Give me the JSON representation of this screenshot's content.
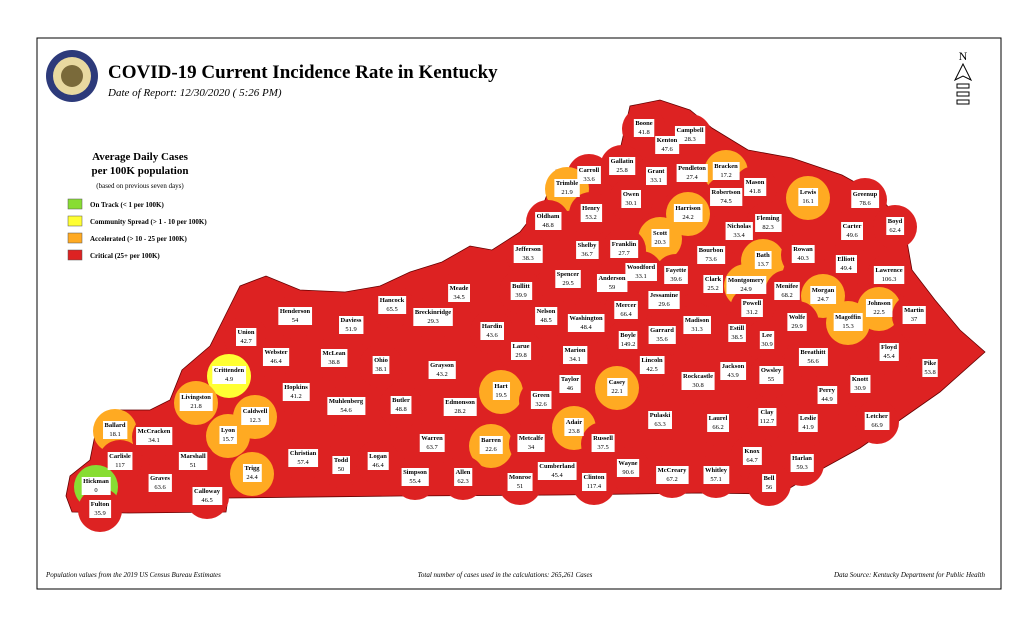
{
  "header": {
    "title": "COVID-19 Current Incidence Rate in Kentucky",
    "subtitle": "Date of Report: 12/30/2020 ( 5:26 PM)",
    "compass": "N"
  },
  "legend": {
    "title": [
      "Average Daily Cases",
      "per 100K population"
    ],
    "subtitle": "(based on previous seven days)",
    "items": [
      {
        "label": "On Track (< 1 per 100K)",
        "color": "#8d3"
      },
      {
        "label": "Community Spread (> 1 - 10 per 100K)",
        "color": "#ff3"
      },
      {
        "label": "Accelerated (> 10 - 25 per 100K)",
        "color": "#fa2"
      },
      {
        "label": "Critical (25+ per 100K)",
        "color": "#d22"
      }
    ]
  },
  "counties": [
    {
      "name": "Boone",
      "value": 41.8,
      "color": "#d22"
    },
    {
      "name": "Campbell",
      "value": 28.3,
      "color": "#d22"
    },
    {
      "name": "Kenton",
      "value": 47.6,
      "color": "#d22"
    },
    {
      "name": "Gallatin",
      "value": 25.8,
      "color": "#d22"
    },
    {
      "name": "Carroll",
      "value": 33.6,
      "color": "#d22"
    },
    {
      "name": "Trimble",
      "value": 21.9,
      "color": "#fa2"
    },
    {
      "name": "Grant",
      "value": 33.1,
      "color": "#d22"
    },
    {
      "name": "Pendleton",
      "value": 27.4,
      "color": "#d22"
    },
    {
      "name": "Bracken",
      "value": 17.2,
      "color": "#fa2"
    },
    {
      "name": "Robertson",
      "value": 74.5,
      "color": "#d22"
    },
    {
      "name": "Mason",
      "value": 41.8,
      "color": "#d22"
    },
    {
      "name": "Lewis",
      "value": 16.1,
      "color": "#fa2"
    },
    {
      "name": "Greenup",
      "value": 78.6,
      "color": "#d22"
    },
    {
      "name": "Boyd",
      "value": 62.4,
      "color": "#d22"
    },
    {
      "name": "Owen",
      "value": 30.1,
      "color": "#d22"
    },
    {
      "name": "Henry",
      "value": 53.2,
      "color": "#d22"
    },
    {
      "name": "Oldham",
      "value": 48.8,
      "color": "#d22"
    },
    {
      "name": "Harrison",
      "value": 24.2,
      "color": "#fa2"
    },
    {
      "name": "Scott",
      "value": 20.3,
      "color": "#fa2"
    },
    {
      "name": "Nicholas",
      "value": 33.4,
      "color": "#d22"
    },
    {
      "name": "Fleming",
      "value": 82.3,
      "color": "#d22"
    },
    {
      "name": "Carter",
      "value": 49.6,
      "color": "#d22"
    },
    {
      "name": "Franklin",
      "value": 27.7,
      "color": "#d22"
    },
    {
      "name": "Shelby",
      "value": 36.7,
      "color": "#d22"
    },
    {
      "name": "Jefferson",
      "value": 38.3,
      "color": "#d22"
    },
    {
      "name": "Bourbon",
      "value": 73.6,
      "color": "#d22"
    },
    {
      "name": "Bath",
      "value": 13.7,
      "color": "#fa2"
    },
    {
      "name": "Rowan",
      "value": 40.3,
      "color": "#d22"
    },
    {
      "name": "Elliott",
      "value": 49.4,
      "color": "#d22"
    },
    {
      "name": "Lawrence",
      "value": 106.3,
      "color": "#d22"
    },
    {
      "name": "Woodford",
      "value": 33.1,
      "color": "#d22"
    },
    {
      "name": "Fayette",
      "value": 39.6,
      "color": "#d22"
    },
    {
      "name": "Spencer",
      "value": 29.5,
      "color": "#d22"
    },
    {
      "name": "Anderson",
      "value": 59,
      "color": "#d22"
    },
    {
      "name": "Clark",
      "value": 25.2,
      "color": "#d22"
    },
    {
      "name": "Montgomery",
      "value": 24.9,
      "color": "#fa2"
    },
    {
      "name": "Menifee",
      "value": 68.2,
      "color": "#d22"
    },
    {
      "name": "Morgan",
      "value": 24.7,
      "color": "#fa2"
    },
    {
      "name": "Johnson",
      "value": 22.5,
      "color": "#fa2"
    },
    {
      "name": "Bullitt",
      "value": 39.9,
      "color": "#d22"
    },
    {
      "name": "Jessamine",
      "value": 29.6,
      "color": "#d22"
    },
    {
      "name": "Mercer",
      "value": 66.4,
      "color": "#d22"
    },
    {
      "name": "Powell",
      "value": 31.2,
      "color": "#d22"
    },
    {
      "name": "Magoffin",
      "value": 15.3,
      "color": "#fa2"
    },
    {
      "name": "Martin",
      "value": 37,
      "color": "#d22"
    },
    {
      "name": "Meade",
      "value": 34.5,
      "color": "#d22"
    },
    {
      "name": "Hancock",
      "value": 65.5,
      "color": "#d22"
    },
    {
      "name": "Breckinridge",
      "value": 29.3,
      "color": "#d22"
    },
    {
      "name": "Henderson",
      "value": 54,
      "color": "#d22"
    },
    {
      "name": "Daviess",
      "value": 51.9,
      "color": "#d22"
    },
    {
      "name": "Nelson",
      "value": 48.5,
      "color": "#d22"
    },
    {
      "name": "Washington",
      "value": 48.4,
      "color": "#d22"
    },
    {
      "name": "Madison",
      "value": 31.3,
      "color": "#d22"
    },
    {
      "name": "Estill",
      "value": 38.5,
      "color": "#d22"
    },
    {
      "name": "Wolfe",
      "value": 29.9,
      "color": "#d22"
    },
    {
      "name": "Lee",
      "value": 30.9,
      "color": "#d22"
    },
    {
      "name": "Hardin",
      "value": 43.6,
      "color": "#d22"
    },
    {
      "name": "Union",
      "value": 42.7,
      "color": "#d22"
    },
    {
      "name": "Boyle",
      "value": 149.2,
      "color": "#d22"
    },
    {
      "name": "Garrard",
      "value": 35.6,
      "color": "#d22"
    },
    {
      "name": "Larue",
      "value": 29.8,
      "color": "#d22"
    },
    {
      "name": "Marion",
      "value": 34.1,
      "color": "#d22"
    },
    {
      "name": "Breathitt",
      "value": 56.6,
      "color": "#d22"
    },
    {
      "name": "Floyd",
      "value": 45.4,
      "color": "#d22"
    },
    {
      "name": "Webster",
      "value": 46.4,
      "color": "#d22"
    },
    {
      "name": "McLean",
      "value": 38.8,
      "color": "#d22"
    },
    {
      "name": "Ohio",
      "value": 38.1,
      "color": "#d22"
    },
    {
      "name": "Grayson",
      "value": 43.2,
      "color": "#d22"
    },
    {
      "name": "Lincoln",
      "value": 42.5,
      "color": "#d22"
    },
    {
      "name": "Jackson",
      "value": 43.9,
      "color": "#d22"
    },
    {
      "name": "Owsley",
      "value": 55,
      "color": "#d22"
    },
    {
      "name": "Pike",
      "value": 53.8,
      "color": "#d22"
    },
    {
      "name": "Knott",
      "value": 30.9,
      "color": "#d22"
    },
    {
      "name": "Crittenden",
      "value": 4.9,
      "color": "#ff3"
    },
    {
      "name": "Rockcastle",
      "value": 30.8,
      "color": "#d22"
    },
    {
      "name": "Taylor",
      "value": 46,
      "color": "#d22"
    },
    {
      "name": "Casey",
      "value": 22.1,
      "color": "#fa2"
    },
    {
      "name": "Hart",
      "value": 19.5,
      "color": "#fa2"
    },
    {
      "name": "Hopkins",
      "value": 41.2,
      "color": "#d22"
    },
    {
      "name": "Perry",
      "value": 44.9,
      "color": "#d22"
    },
    {
      "name": "Muhlenberg",
      "value": 54.6,
      "color": "#d22"
    },
    {
      "name": "Butler",
      "value": 48.8,
      "color": "#d22"
    },
    {
      "name": "Edmonson",
      "value": 28.2,
      "color": "#d22"
    },
    {
      "name": "Green",
      "value": 32.6,
      "color": "#d22"
    },
    {
      "name": "Livingston",
      "value": 21.8,
      "color": "#fa2"
    },
    {
      "name": "Caldwell",
      "value": 12.3,
      "color": "#fa2"
    },
    {
      "name": "Ballard",
      "value": 18.1,
      "color": "#fa2"
    },
    {
      "name": "McCracken",
      "value": 34.1,
      "color": "#d22"
    },
    {
      "name": "Lyon",
      "value": 15.7,
      "color": "#fa2"
    },
    {
      "name": "Pulaski",
      "value": 63.3,
      "color": "#d22"
    },
    {
      "name": "Laurel",
      "value": 66.2,
      "color": "#d22"
    },
    {
      "name": "Clay",
      "value": 112.7,
      "color": "#d22"
    },
    {
      "name": "Leslie",
      "value": 41.9,
      "color": "#d22"
    },
    {
      "name": "Letcher",
      "value": 66.9,
      "color": "#d22"
    },
    {
      "name": "Adair",
      "value": 23.8,
      "color": "#fa2"
    },
    {
      "name": "Russell",
      "value": 37.5,
      "color": "#d22"
    },
    {
      "name": "Warren",
      "value": 63.7,
      "color": "#d22"
    },
    {
      "name": "Christian",
      "value": 57.4,
      "color": "#d22"
    },
    {
      "name": "Barren",
      "value": 22.6,
      "color": "#fa2"
    },
    {
      "name": "Metcalfe",
      "value": 34,
      "color": "#d22"
    },
    {
      "name": "Knox",
      "value": 64.7,
      "color": "#d22"
    },
    {
      "name": "Harlan",
      "value": 59.3,
      "color": "#d22"
    },
    {
      "name": "Marshall",
      "value": 51,
      "color": "#d22"
    },
    {
      "name": "Carlisle",
      "value": 117,
      "color": "#d22"
    },
    {
      "name": "Trigg",
      "value": 24.4,
      "color": "#fa2"
    },
    {
      "name": "Todd",
      "value": 50,
      "color": "#d22"
    },
    {
      "name": "Logan",
      "value": 46.4,
      "color": "#d22"
    },
    {
      "name": "Cumberland",
      "value": 45.4,
      "color": "#d22"
    },
    {
      "name": "Wayne",
      "value": 90.6,
      "color": "#d22"
    },
    {
      "name": "McCreary",
      "value": 67.2,
      "color": "#d22"
    },
    {
      "name": "Whitley",
      "value": 57.1,
      "color": "#d22"
    },
    {
      "name": "Simpson",
      "value": 55.4,
      "color": "#d22"
    },
    {
      "name": "Allen",
      "value": 62.3,
      "color": "#d22"
    },
    {
      "name": "Monroe",
      "value": 51,
      "color": "#d22"
    },
    {
      "name": "Clinton",
      "value": 117.4,
      "color": "#d22"
    },
    {
      "name": "Bell",
      "value": 56,
      "color": "#d22"
    },
    {
      "name": "Graves",
      "value": 63.6,
      "color": "#d22"
    },
    {
      "name": "Hickman",
      "value": 0,
      "color": "#8d3"
    },
    {
      "name": "Calloway",
      "value": 46.5,
      "color": "#d22"
    },
    {
      "name": "Fulton",
      "value": 35.9,
      "color": "#d22"
    }
  ],
  "footer": {
    "left": "Population values from the 2019 US Census Bureau Estimates",
    "center": "Total number of cases used in the calculations: 265,261 Cases",
    "right": "Data Source: Kentucky Department for Public Health"
  }
}
